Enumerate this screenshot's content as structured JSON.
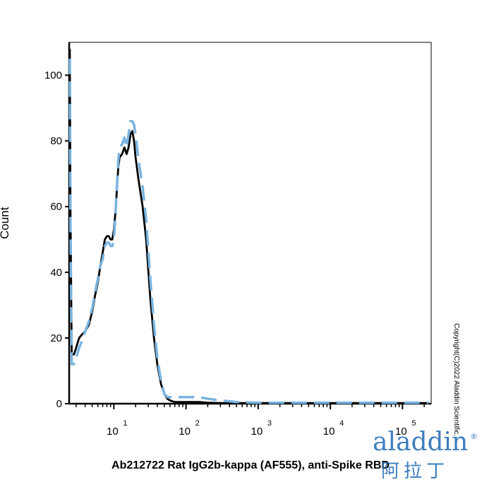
{
  "chart_data": {
    "type": "line",
    "title": "",
    "xlabel": "Ab212722 Rat IgG2b-kappa (AF555), anti-Spike RBD",
    "ylabel": "Count",
    "x_scale": "log",
    "xlim": [
      2.4,
      250000
    ],
    "ylim": [
      0,
      110
    ],
    "y_ticks": [
      0,
      20,
      40,
      60,
      80,
      100
    ],
    "x_ticks": [
      {
        "value": 10,
        "base": "10",
        "exp": "1"
      },
      {
        "value": 100,
        "base": "10",
        "exp": "2"
      },
      {
        "value": 1000,
        "base": "10",
        "exp": "3"
      },
      {
        "value": 10000,
        "base": "10",
        "exp": "4"
      },
      {
        "value": 100000,
        "base": "10",
        "exp": "5"
      }
    ],
    "grid": false,
    "legend": "none",
    "series": [
      {
        "color": "#000000",
        "dash": "solid",
        "x": [
          2.45,
          2.5,
          2.6,
          2.8,
          3.0,
          3.3,
          3.6,
          4.0,
          4.5,
          5.0,
          5.5,
          6.0,
          6.5,
          7.0,
          7.5,
          8.0,
          8.5,
          9.0,
          9.5,
          10.0,
          10.5,
          11.0,
          11.5,
          12.0,
          13.0,
          14.0,
          15.0,
          16.0,
          17.0,
          18.0,
          19.0,
          20.0,
          22.0,
          25.0,
          28.0,
          32.0,
          36.0,
          40.0,
          45.0,
          50.0,
          55.0,
          60.0,
          65.0,
          70.0,
          80.0,
          90.0,
          110.0,
          150.0,
          200.0,
          300.0,
          500.0,
          1000.0,
          10000.0,
          230000.0
        ],
        "y": [
          108,
          60,
          15,
          15,
          17,
          20,
          21,
          22,
          24,
          28,
          33,
          37,
          42,
          46,
          50,
          51,
          51,
          50,
          50,
          53,
          58,
          65,
          72,
          75,
          76,
          78,
          76,
          78,
          82,
          83,
          80,
          75,
          68,
          60,
          50,
          32,
          20,
          12,
          6,
          3,
          1.5,
          1,
          0.7,
          0.5,
          0.5,
          0.5,
          0.5,
          0.5,
          0.3,
          0.2,
          0.2,
          0.2,
          0.2,
          0.2
        ]
      },
      {
        "color": "#7ab4e0",
        "dash": "dashed",
        "x": [
          2.45,
          2.5,
          2.6,
          2.8,
          3.0,
          3.3,
          3.6,
          4.0,
          4.5,
          5.0,
          5.5,
          6.0,
          6.5,
          7.0,
          7.5,
          8.0,
          8.5,
          9.0,
          9.5,
          10.0,
          10.5,
          11.0,
          11.5,
          12.0,
          13.0,
          14.0,
          15.0,
          16.0,
          17.0,
          18.0,
          19.0,
          20.0,
          22.0,
          25.0,
          28.0,
          32.0,
          36.0,
          40.0,
          45.0,
          50.0,
          55.0,
          60.0,
          65.0,
          70.0,
          80.0,
          90.0,
          110.0,
          150.0,
          200.0,
          300.0,
          500.0,
          1000.0,
          10000.0,
          230000.0
        ],
        "y": [
          105,
          55,
          12,
          12,
          14,
          17,
          19,
          22,
          25,
          29,
          34,
          38,
          42,
          44,
          48,
          49,
          49,
          48,
          48,
          50,
          57,
          66,
          74,
          78,
          79,
          81,
          78,
          82,
          86,
          86,
          85,
          82,
          74,
          66,
          56,
          38,
          24,
          14,
          7,
          3,
          2,
          2,
          2,
          2,
          2,
          2,
          2,
          2,
          1.5,
          1,
          0.5,
          0.3,
          0.3,
          0.3
        ]
      }
    ]
  },
  "watermark": {
    "copyright": "Copyright(C)2022 Aladdin Scientific.",
    "logo": "aladdin",
    "logo_mark": "®",
    "logo_sub": "阿拉丁"
  }
}
